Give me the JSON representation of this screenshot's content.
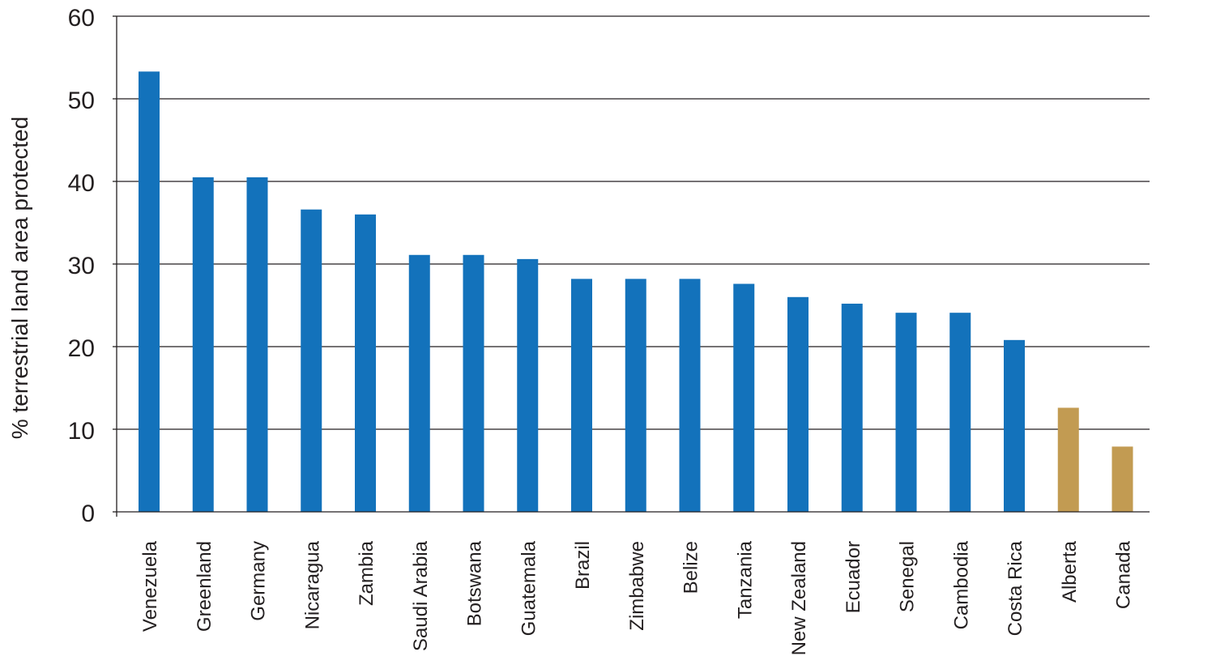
{
  "chart_data": {
    "type": "bar",
    "title": "",
    "xlabel": "",
    "ylabel": "% terrestrial land area protected",
    "ylim": [
      0,
      60
    ],
    "yticks": [
      0,
      10,
      20,
      30,
      40,
      50,
      60
    ],
    "grid": "horizontal",
    "categories": [
      "Venezuela",
      "Greenland",
      "Germany",
      "Nicaragua",
      "Zambia",
      "Saudi Arabia",
      "Botswana",
      "Guatemala",
      "Brazil",
      "Zimbabwe",
      "Belize",
      "Tanzania",
      "New Zealand",
      "Ecuador",
      "Senegal",
      "Cambodia",
      "Costa Rica",
      "Alberta",
      "Canada"
    ],
    "values": [
      53.3,
      40.5,
      40.5,
      36.6,
      36.0,
      31.1,
      31.1,
      30.6,
      28.2,
      28.2,
      28.2,
      27.6,
      26.0,
      25.2,
      24.1,
      24.1,
      20.8,
      12.6,
      7.9
    ],
    "colors": {
      "default": "#1372bb",
      "highlight": "#c29b52",
      "grid": "#231f20",
      "text": "#231f20"
    },
    "highlighted": [
      "Alberta",
      "Canada"
    ]
  }
}
